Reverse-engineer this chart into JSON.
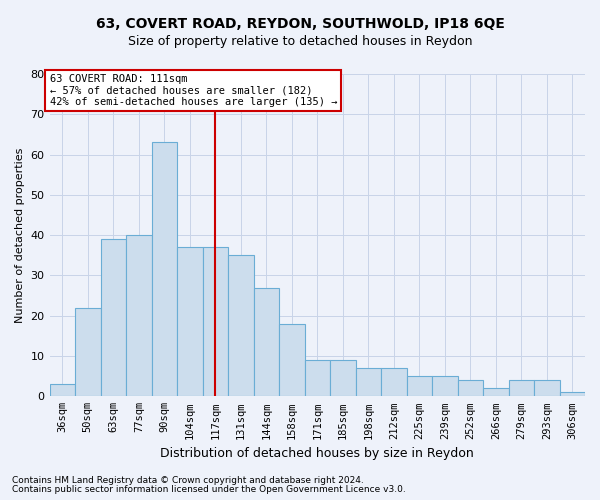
{
  "title1": "63, COVERT ROAD, REYDON, SOUTHWOLD, IP18 6QE",
  "title2": "Size of property relative to detached houses in Reydon",
  "xlabel": "Distribution of detached houses by size in Reydon",
  "ylabel": "Number of detached properties",
  "categories": [
    "36sqm",
    "50sqm",
    "63sqm",
    "77sqm",
    "90sqm",
    "104sqm",
    "117sqm",
    "131sqm",
    "144sqm",
    "158sqm",
    "171sqm",
    "185sqm",
    "198sqm",
    "212sqm",
    "225sqm",
    "239sqm",
    "252sqm",
    "266sqm",
    "279sqm",
    "293sqm",
    "306sqm"
  ],
  "values": [
    3,
    22,
    39,
    40,
    63,
    37,
    37,
    35,
    27,
    18,
    9,
    9,
    7,
    7,
    5,
    5,
    4,
    2,
    4,
    4,
    1
  ],
  "bar_color": "#ccdded",
  "bar_edge_color": "#6aadd5",
  "vline_x": 6.0,
  "vline_color": "#cc0000",
  "annotation_text": "63 COVERT ROAD: 111sqm\n← 57% of detached houses are smaller (182)\n42% of semi-detached houses are larger (135) →",
  "annotation_box_color": "#ffffff",
  "annotation_box_edge": "#cc0000",
  "ylim": [
    0,
    80
  ],
  "yticks": [
    0,
    10,
    20,
    30,
    40,
    50,
    60,
    70,
    80
  ],
  "grid_color": "#c8d4e8",
  "background_color": "#eef2fa",
  "footnote1": "Contains HM Land Registry data © Crown copyright and database right 2024.",
  "footnote2": "Contains public sector information licensed under the Open Government Licence v3.0."
}
